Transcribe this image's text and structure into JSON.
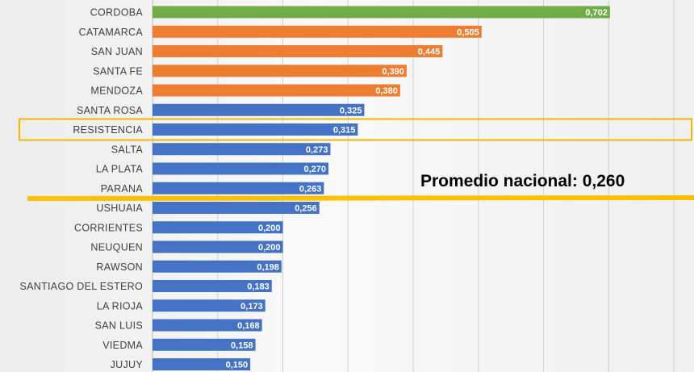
{
  "chart_data": {
    "type": "bar",
    "orientation": "horizontal",
    "categories": [
      "CORDOBA",
      "CATAMARCA",
      "SAN JUAN",
      "SANTA FE",
      "MENDOZA",
      "SANTA ROSA",
      "RESISTENCIA",
      "SALTA",
      "LA PLATA",
      "PARANA",
      "USHUAIA",
      "CORRIENTES",
      "NEUQUEN",
      "RAWSON",
      "SANTIAGO DEL ESTERO",
      "LA RIOJA",
      "SAN LUIS",
      "VIEDMA",
      "JUJUY"
    ],
    "values": [
      0.702,
      0.505,
      0.445,
      0.39,
      0.38,
      0.325,
      0.315,
      0.273,
      0.27,
      0.263,
      0.256,
      0.2,
      0.2,
      0.198,
      0.183,
      0.173,
      0.168,
      0.158,
      0.15
    ],
    "value_labels": [
      "0,702",
      "0,505",
      "0,445",
      "0,390",
      "0,380",
      "0,325",
      "0,315",
      "0,273",
      "0,270",
      "0,263",
      "0,256",
      "0,200",
      "0,200",
      "0,198",
      "0,183",
      "0,173",
      "0,168",
      "0,158",
      "0,150"
    ],
    "bar_colors": [
      "#70ad47",
      "#ed7d31",
      "#ed7d31",
      "#ed7d31",
      "#ed7d31",
      "#4472c4",
      "#4472c4",
      "#4472c4",
      "#4472c4",
      "#4472c4",
      "#4472c4",
      "#4472c4",
      "#4472c4",
      "#4472c4",
      "#4472c4",
      "#4472c4",
      "#4472c4",
      "#4472c4",
      "#4472c4"
    ],
    "xlim": [
      0,
      0.8
    ],
    "grid": true,
    "highlighted_category": "RESISTENCIA",
    "reference_line": {
      "value": 0.26,
      "label": "Promedio nacional: 0,260",
      "color": "#ffc000"
    }
  }
}
